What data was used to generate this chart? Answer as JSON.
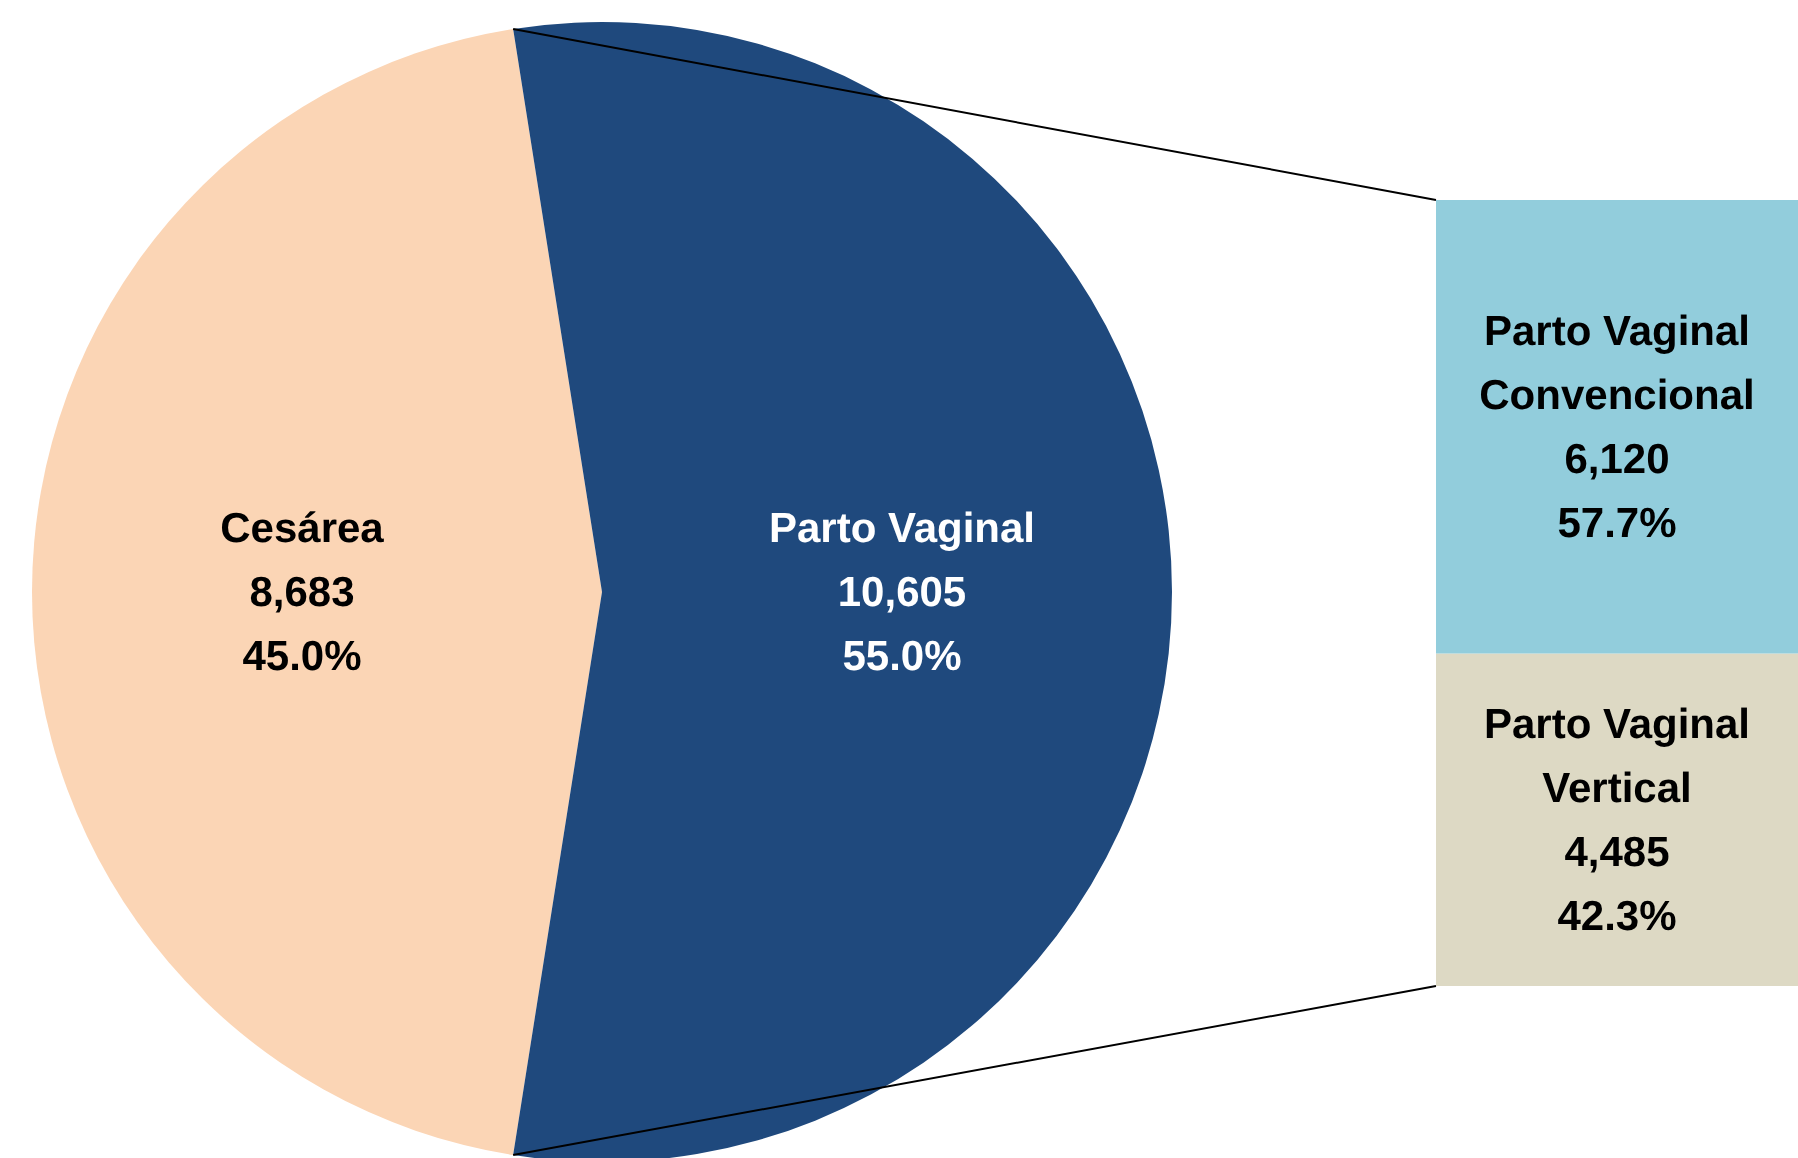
{
  "chart_data": [
    {
      "type": "pie",
      "categories": [
        "Cesárea",
        "Parto Vaginal"
      ],
      "values": [
        8683,
        10605
      ],
      "colors": [
        "#fbd5b5",
        "#1f497d"
      ],
      "value_labels": [
        "8,683\n45.0%",
        "10,605\n55.0%"
      ]
    },
    {
      "type": "bar",
      "stacked": true,
      "categories": [
        null
      ],
      "series": [
        {
          "name": "Parto Vaginal Vertical",
          "color": "#ddd9c4",
          "values": [
            4485
          ],
          "value_labels": [
            "4,485\n42.3%"
          ]
        },
        {
          "name": "Parto Vaginal Convencional",
          "color": "#92cddc",
          "values": [
            6120
          ],
          "value_labels": [
            "6,120\n57.7%"
          ]
        }
      ]
    }
  ]
}
